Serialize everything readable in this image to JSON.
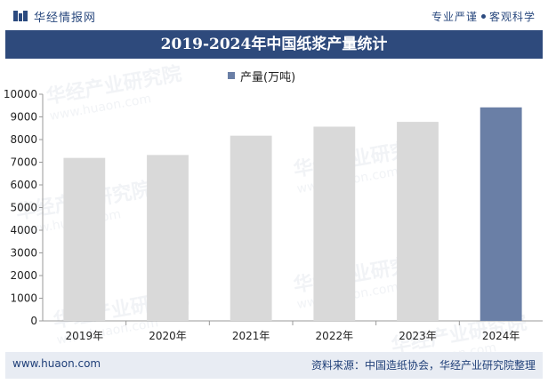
{
  "header": {
    "brand": "华经情报网",
    "slogan_left": "专业严谨",
    "slogan_right": "客观科学"
  },
  "chart_data": {
    "type": "bar",
    "title": "2019-2024年中国纸浆产量统计",
    "categories": [
      "2019年",
      "2020年",
      "2021年",
      "2022年",
      "2023年",
      "2024年"
    ],
    "series": [
      {
        "name": "产量(万吨)",
        "values": [
          7190,
          7320,
          8170,
          8570,
          8780,
          9420
        ]
      }
    ],
    "highlight_index": 5,
    "ylim": [
      0,
      10000
    ],
    "yticks": [
      0,
      1000,
      2000,
      3000,
      4000,
      5000,
      6000,
      7000,
      8000,
      9000,
      10000
    ],
    "xlabel": "",
    "ylabel": "",
    "colors": {
      "normal": "#d9d9d9",
      "highlight": "#6a7fa6"
    },
    "legend_position": "top-center"
  },
  "footer": {
    "url": "www.huaon.com",
    "source": "资料来源：中国造纸协会，华经产业研究院整理"
  },
  "watermark": {
    "text": "华经产业研究院",
    "url_text": "www.huaon.com"
  }
}
